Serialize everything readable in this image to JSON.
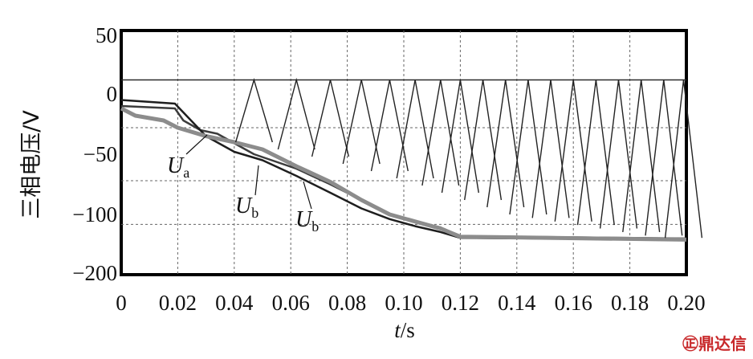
{
  "chart_data": {
    "type": "line",
    "title": "",
    "xlabel_italic": "t",
    "xlabel_unit": "/s",
    "ylabel": "三相电压/V",
    "xlim": [
      0,
      0.2
    ],
    "ylim": [
      -200,
      50
    ],
    "xticks": [
      "0",
      "0.02",
      "0.04",
      "0.06",
      "0.08",
      "0.10",
      "0.12",
      "0.14",
      "0.16",
      "0.18",
      "0.20"
    ],
    "yticks": [
      "50",
      "0",
      "-50",
      "-100",
      "-200"
    ],
    "ytick_values": [
      50,
      0,
      -50,
      -100,
      -200
    ],
    "grid": true,
    "grid_y_values": [
      12,
      -28,
      -72,
      -117
    ],
    "series": [
      {
        "name": "U_a",
        "color": "#3c3c3c",
        "x": [
          0,
          0.019,
          0.022,
          0.028,
          0.034,
          0.047,
          0.062,
          0.074,
          0.085,
          0.095,
          0.104,
          0.113,
          0.12,
          0.2
        ],
        "y": [
          -10,
          -12,
          -22,
          -30,
          -33,
          -50,
          -62,
          -75,
          -88,
          -100,
          -112,
          -122,
          -137,
          -141
        ]
      },
      {
        "name": "U_b",
        "color": "#1e1e1e",
        "x": [
          0,
          0.019,
          0.03,
          0.04,
          0.05,
          0.062,
          0.074,
          0.085,
          0.095,
          0.104,
          0.113,
          0.12,
          0.2
        ],
        "y": [
          -5,
          -8,
          -35,
          -48,
          -55,
          -68,
          -82,
          -95,
          -108,
          -120,
          -130,
          -140,
          -143
        ]
      },
      {
        "name": "U_b",
        "color": "#8c8c8c",
        "x": [
          0,
          0.005,
          0.015,
          0.02,
          0.03,
          0.04,
          0.05,
          0.062,
          0.074,
          0.085,
          0.095,
          0.104,
          0.113,
          0.12,
          0.2
        ],
        "y": [
          -12,
          -18,
          -22,
          -28,
          -35,
          -40,
          -46,
          -60,
          -73,
          -88,
          -100,
          -112,
          -124,
          -138,
          -143
        ]
      },
      {
        "name": "",
        "color": "#2a2a2a",
        "x": [
          0,
          0.019,
          0.2
        ],
        "y": [
          12,
          12,
          12
        ]
      }
    ],
    "annotations": [
      {
        "base": "U",
        "sub": "a"
      },
      {
        "base": "U",
        "sub": "b"
      },
      {
        "base": "U",
        "sub": "b"
      }
    ]
  },
  "watermark": "㊣鼎达信"
}
